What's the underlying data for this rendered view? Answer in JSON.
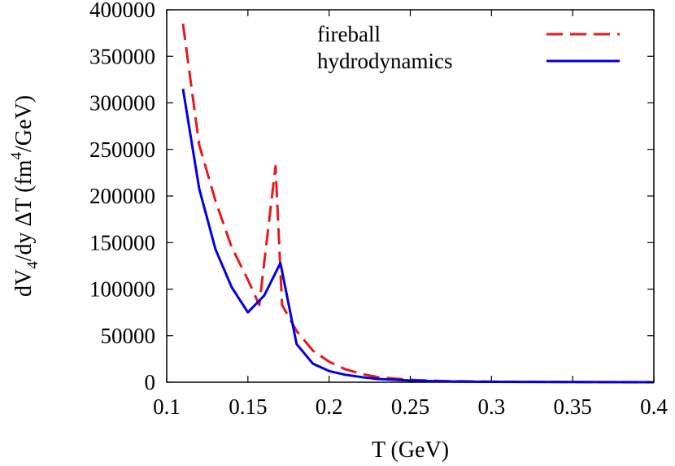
{
  "chart_data": {
    "type": "line",
    "xlabel": "T (GeV)",
    "ylabel_parts": {
      "prefix": "dV",
      "subscript": "4",
      "middle": "/dy ΔT (fm",
      "superscript": "4",
      "suffix": "/GeV)"
    },
    "xlim": [
      0.1,
      0.4
    ],
    "ylim": [
      0,
      400000
    ],
    "x_ticks": [
      "0.1",
      "0.15",
      "0.2",
      "0.25",
      "0.3",
      "0.35",
      "0.4"
    ],
    "y_ticks": [
      "0",
      "50000",
      "100000",
      "150000",
      "200000",
      "250000",
      "300000",
      "350000",
      "400000"
    ],
    "legend_position": "top-right",
    "grid": false,
    "series": [
      {
        "name": "fireball",
        "color": "#e41a1c",
        "dash": "dashed",
        "x": [
          0.11,
          0.12,
          0.13,
          0.14,
          0.15,
          0.157,
          0.167,
          0.171,
          0.18,
          0.19,
          0.2,
          0.21,
          0.22,
          0.23,
          0.25,
          0.27,
          0.3,
          0.35,
          0.4
        ],
        "y": [
          385000,
          255000,
          195000,
          145000,
          110000,
          83000,
          232000,
          83000,
          55000,
          34000,
          22000,
          14000,
          9000,
          5500,
          2500,
          1300,
          600,
          200,
          50
        ]
      },
      {
        "name": "hydrodynamics",
        "color": "#0000e0",
        "dash": "solid",
        "x": [
          0.11,
          0.12,
          0.13,
          0.14,
          0.15,
          0.16,
          0.17,
          0.18,
          0.19,
          0.2,
          0.21,
          0.22,
          0.23,
          0.25,
          0.27,
          0.3,
          0.35,
          0.4
        ],
        "y": [
          315000,
          208000,
          143000,
          102000,
          75000,
          93000,
          128000,
          41000,
          20000,
          12000,
          8000,
          5500,
          3500,
          1800,
          900,
          400,
          150,
          40
        ]
      }
    ]
  }
}
